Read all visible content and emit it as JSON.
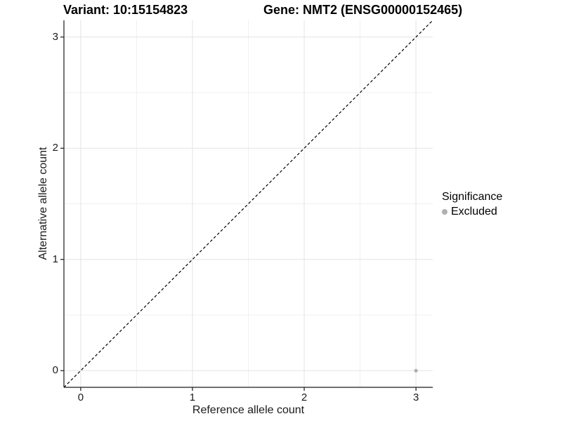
{
  "titles": {
    "variant": "Variant: 10:15154823",
    "gene": "Gene: NMT2 (ENSG00000152465)"
  },
  "legend": {
    "title": "Significance",
    "items": [
      {
        "label": "Excluded",
        "color": "#b0b0b0"
      }
    ]
  },
  "colors": {
    "background": "#ffffff",
    "grid_major": "#e3e3e3",
    "grid_minor": "#f0f0f0",
    "axis_line": "#1a1a1a",
    "tick_text": "#000000",
    "dashed_line": "#000000",
    "point": "#b0b0b0"
  },
  "chart_data": {
    "type": "scatter",
    "title_left": "Variant: 10:15154823",
    "title_right": "Gene: NMT2 (ENSG00000152465)",
    "xlabel": "Reference allele count",
    "ylabel": "Alternative allele count",
    "xlim": [
      -0.15,
      3.15
    ],
    "ylim": [
      -0.15,
      3.15
    ],
    "xticks": [
      0,
      1,
      2,
      3
    ],
    "yticks": [
      0,
      1,
      2,
      3
    ],
    "xtick_labels": [
      "0",
      "1",
      "2",
      "3"
    ],
    "ytick_labels": [
      "0",
      "1",
      "2",
      "3"
    ],
    "x_minor": [
      0.5,
      1.5,
      2.5
    ],
    "y_minor": [
      0.5,
      1.5,
      2.5
    ],
    "grid": true,
    "legend_position": "right",
    "legend_title": "Significance",
    "reference_line": {
      "slope": 1,
      "intercept": 0,
      "linetype": "dashed",
      "color": "#000000"
    },
    "series": [
      {
        "name": "Excluded",
        "color": "#b0b0b0",
        "points": [
          {
            "x": 3,
            "y": 0
          }
        ]
      }
    ]
  }
}
